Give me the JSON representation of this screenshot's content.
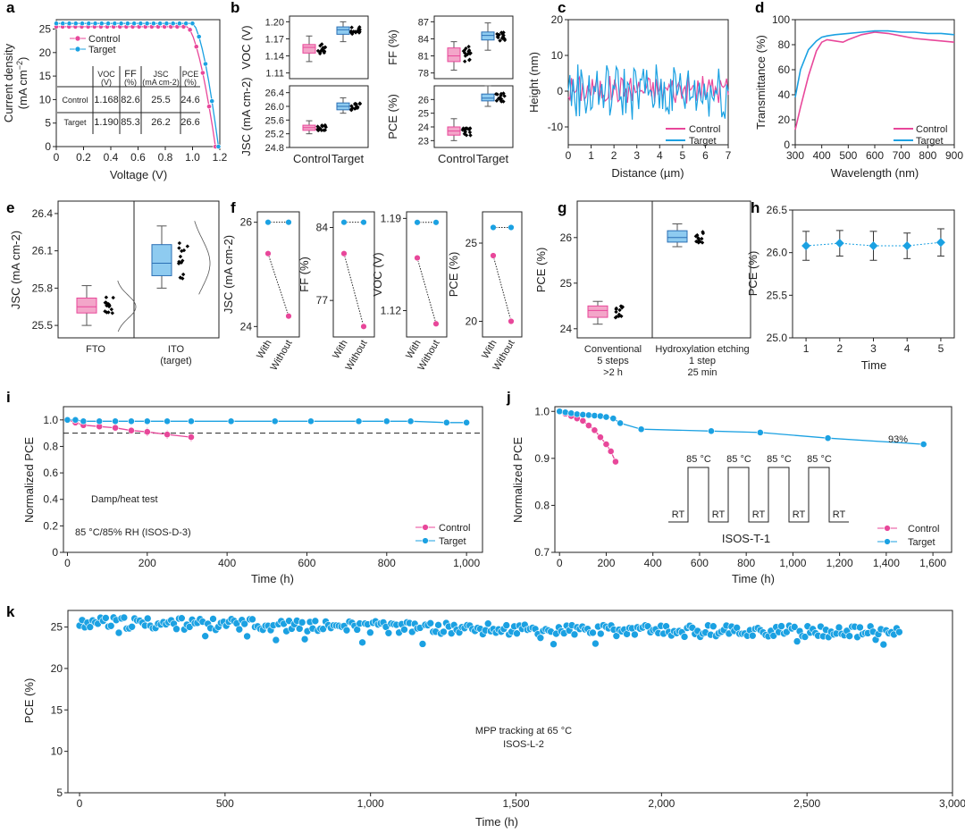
{
  "colors": {
    "control": "#e8479a",
    "target": "#1ba1e2",
    "controlFill": "#f3a6c9",
    "targetFill": "#8ecbf0"
  },
  "chart_data": [
    {
      "id": "a",
      "type": "line",
      "panel_label": "a",
      "xlabel": "Voltage (V)",
      "ylabel_line1": "Current density",
      "ylabel_line2": "(mA cm",
      "xlim": [
        0,
        1.2
      ],
      "ylim": [
        0,
        27
      ],
      "xticks": [
        "0",
        "0.2",
        "0.4",
        "0.6",
        "0.8",
        "1.0",
        "1.2"
      ],
      "yticks": [
        "0",
        "5",
        "10",
        "15",
        "20",
        "25"
      ],
      "legend": [
        "Control",
        "Target"
      ],
      "series": [
        {
          "name": "Control",
          "jsc": 25.5,
          "voc": 1.168,
          "knee": 0.96
        },
        {
          "name": "Target",
          "jsc": 26.2,
          "voc": 1.19,
          "knee": 1.0
        }
      ],
      "table": {
        "headers": [
          "",
          "VOC (V)",
          "FF (%)",
          "JSC (mA cm-2)",
          "PCE (%)"
        ],
        "rows": [
          [
            "Control",
            "1.168",
            "82.6",
            "25.5",
            "24.6"
          ],
          [
            "Target",
            "1.190",
            "85.3",
            "26.2",
            "26.6"
          ]
        ]
      }
    },
    {
      "id": "b",
      "type": "box",
      "panel_label": "b",
      "categories": [
        "Control",
        "Target"
      ],
      "subplots": [
        {
          "ylabel": "VOC (V)",
          "yticks": [
            "1.20",
            "1.17",
            "1.14",
            "1.11"
          ],
          "ylim": [
            1.1,
            1.21
          ],
          "control": [
            1.13,
            1.145,
            1.155,
            1.16,
            1.175
          ],
          "target": [
            1.165,
            1.178,
            1.186,
            1.191,
            1.2
          ]
        },
        {
          "ylabel": "FF (%)",
          "yticks": [
            "87",
            "84",
            "81",
            "78"
          ],
          "ylim": [
            77,
            88
          ],
          "control": [
            78.5,
            80,
            81,
            82.4,
            83.5
          ],
          "target": [
            82,
            83.8,
            84.6,
            85.2,
            86.8
          ]
        },
        {
          "ylabel": "JSC (mA cm-2)",
          "yticks": [
            "26.4",
            "26.0",
            "25.6",
            "25.2",
            "24.8"
          ],
          "ylim": [
            24.8,
            26.6
          ],
          "control": [
            25.2,
            25.3,
            25.38,
            25.45,
            25.58
          ],
          "target": [
            25.8,
            25.9,
            26.0,
            26.1,
            26.25
          ]
        },
        {
          "ylabel": "PCE (%)",
          "yticks": [
            "26",
            "25",
            "24",
            "23"
          ],
          "ylim": [
            22.5,
            27
          ],
          "control": [
            23,
            23.4,
            23.7,
            24.0,
            24.6
          ],
          "target": [
            25.5,
            25.9,
            26.1,
            26.4,
            27
          ]
        }
      ]
    },
    {
      "id": "c",
      "type": "line",
      "panel_label": "c",
      "xlabel": "Distance (µm)",
      "ylabel": "Height (nm)",
      "xlim": [
        0,
        7
      ],
      "ylim": [
        -15,
        20
      ],
      "xticks": [
        "0",
        "1",
        "2",
        "3",
        "4",
        "5",
        "6",
        "7"
      ],
      "yticks": [
        "20",
        "10",
        "0",
        "-10"
      ],
      "legend": [
        "Control",
        "Target"
      ],
      "series": [
        {
          "name": "Control",
          "amplitude": 4
        },
        {
          "name": "Target",
          "amplitude": 8
        }
      ]
    },
    {
      "id": "d",
      "type": "line",
      "panel_label": "d",
      "xlabel": "Wavelength (nm)",
      "ylabel": "Transmittance (%)",
      "xlim": [
        300,
        900
      ],
      "ylim": [
        0,
        100
      ],
      "xticks": [
        "300",
        "400",
        "500",
        "600",
        "700",
        "800",
        "900"
      ],
      "yticks": [
        "0",
        "20",
        "40",
        "60",
        "80",
        "100"
      ],
      "legend": [
        "Control",
        "Target"
      ],
      "series": [
        {
          "name": "Control",
          "x": [
            300,
            320,
            350,
            380,
            400,
            420,
            450,
            480,
            500,
            550,
            600,
            650,
            700,
            750,
            800,
            850,
            900
          ],
          "y": [
            12,
            30,
            55,
            75,
            82,
            84,
            83,
            82,
            84,
            88,
            90,
            89,
            87,
            85,
            84,
            83,
            82
          ]
        },
        {
          "name": "Target",
          "x": [
            300,
            320,
            350,
            380,
            400,
            420,
            450,
            500,
            550,
            600,
            650,
            700,
            750,
            800,
            850,
            900
          ],
          "y": [
            38,
            60,
            76,
            83,
            86,
            87,
            88,
            89,
            90,
            91,
            91,
            90,
            90,
            89,
            89,
            88
          ]
        }
      ]
    },
    {
      "id": "e",
      "type": "box",
      "panel_label": "e",
      "ylabel": "JSC (mA cm-2)",
      "ylim": [
        25.4,
        26.5
      ],
      "yticks": [
        "26.4",
        "26.1",
        "25.8",
        "25.5"
      ],
      "categories": [
        "FTO",
        "ITO (target)"
      ],
      "boxes": [
        [
          25.5,
          25.6,
          25.65,
          25.72,
          25.82
        ],
        [
          25.8,
          25.9,
          26.0,
          26.15,
          26.3
        ]
      ]
    },
    {
      "id": "f",
      "type": "paired",
      "panel_label": "f",
      "categories": [
        "With",
        "Without"
      ],
      "subplots": [
        {
          "ylabel": "JSC (mA cm-2)",
          "yticks": [
            "26",
            "24"
          ],
          "ylim": [
            23.8,
            26.2
          ],
          "target": [
            26,
            26
          ],
          "control": [
            25.4,
            24.2
          ]
        },
        {
          "ylabel": "FF (%)",
          "yticks": [
            "84",
            "77"
          ],
          "ylim": [
            73.5,
            85.5
          ],
          "target": [
            84.5,
            84.5
          ],
          "control": [
            81.5,
            74.5
          ]
        },
        {
          "ylabel": "VOC (V)",
          "yticks": [
            "1.19",
            "1.12"
          ],
          "ylim": [
            1.1,
            1.195
          ],
          "target": [
            1.187,
            1.187
          ],
          "control": [
            1.16,
            1.11
          ]
        },
        {
          "ylabel": "PCE (%)",
          "yticks": [
            "25",
            "20"
          ],
          "ylim": [
            19,
            27
          ],
          "target": [
            26,
            26
          ],
          "control": [
            24.2,
            20
          ]
        }
      ]
    },
    {
      "id": "g",
      "type": "box",
      "panel_label": "g",
      "ylabel": "PCE (%)",
      "ylim": [
        23.8,
        26.8
      ],
      "yticks": [
        "26",
        "25",
        "24"
      ],
      "categories": [
        "Conventional",
        "Hydroxylation etching"
      ],
      "category_details": [
        [
          "5 steps",
          ">2 h"
        ],
        [
          "1 step",
          "25 min"
        ]
      ],
      "boxes": [
        [
          24.1,
          24.25,
          24.4,
          24.5,
          24.6
        ],
        [
          25.8,
          25.9,
          26.0,
          26.15,
          26.3
        ]
      ]
    },
    {
      "id": "h",
      "type": "scatter",
      "panel_label": "h",
      "xlabel": "Time",
      "ylabel": "PCE (%)",
      "xlim": [
        0.6,
        5.4
      ],
      "ylim": [
        25.0,
        26.5
      ],
      "xticks": [
        "1",
        "2",
        "3",
        "4",
        "5"
      ],
      "yticks": [
        "26.5",
        "26.0",
        "25.5",
        "25.0"
      ],
      "x": [
        1,
        2,
        3,
        4,
        5
      ],
      "y": [
        26.08,
        26.11,
        26.08,
        26.08,
        26.12
      ],
      "err": [
        0.17,
        0.15,
        0.17,
        0.15,
        0.16
      ]
    },
    {
      "id": "i",
      "type": "line",
      "panel_label": "i",
      "xlabel": "Time (h)",
      "ylabel": "Normalized PCE",
      "xlim": [
        -10,
        1040
      ],
      "ylim": [
        0,
        1.1
      ],
      "xticks": [
        "0",
        "200",
        "400",
        "600",
        "800",
        "1,000"
      ],
      "yticks": [
        "0",
        "0.2",
        "0.4",
        "0.6",
        "0.8",
        "1.0"
      ],
      "reference_line": 0.9,
      "annotation_lines": [
        "Damp/heat test",
        "85 °C/85% RH (ISOS-D-3)"
      ],
      "legend": [
        "Control",
        "Target"
      ],
      "series": [
        {
          "name": "Control",
          "x": [
            0,
            20,
            40,
            80,
            120,
            160,
            200,
            250,
            310
          ],
          "y": [
            1.0,
            0.98,
            0.96,
            0.95,
            0.94,
            0.92,
            0.91,
            0.89,
            0.87
          ],
          "err": [
            0,
            0.01,
            0.01,
            0.02,
            0.02,
            0.02,
            0.03,
            0.03,
            0.03
          ]
        },
        {
          "name": "Target",
          "x": [
            0,
            20,
            40,
            80,
            120,
            160,
            200,
            250,
            310,
            410,
            520,
            610,
            730,
            800,
            860,
            950,
            1000
          ],
          "y": [
            1.0,
            1.0,
            0.99,
            0.99,
            0.99,
            0.99,
            0.99,
            0.99,
            0.99,
            0.99,
            0.99,
            0.99,
            0.99,
            0.99,
            0.99,
            0.98,
            0.98
          ]
        }
      ]
    },
    {
      "id": "j",
      "type": "line",
      "panel_label": "j",
      "xlabel": "Time (h)",
      "ylabel": "Normalized PCE",
      "xlim": [
        -20,
        1680
      ],
      "ylim": [
        0.7,
        1.01
      ],
      "xticks": [
        "0",
        "200",
        "400",
        "600",
        "800",
        "1,000",
        "1,200",
        "1,400",
        "1,600"
      ],
      "yticks": [
        "0.7",
        "0.8",
        "0.9",
        "1.0"
      ],
      "end_label": "93%",
      "cycle_labels": {
        "hot": "85 °C",
        "cold": "RT",
        "cycles": 4
      },
      "protocol": "ISOS-T-1",
      "legend": [
        "Control",
        "Target"
      ],
      "series": [
        {
          "name": "Control",
          "x": [
            0,
            25,
            50,
            75,
            100,
            125,
            150,
            175,
            200,
            220,
            240
          ],
          "y": [
            1.0,
            0.995,
            0.99,
            0.985,
            0.98,
            0.97,
            0.96,
            0.945,
            0.93,
            0.915,
            0.893
          ]
        },
        {
          "name": "Target",
          "x": [
            0,
            25,
            50,
            75,
            100,
            125,
            150,
            175,
            200,
            230,
            260,
            350,
            650,
            860,
            1150,
            1560
          ],
          "y": [
            1.0,
            0.998,
            0.996,
            0.994,
            0.993,
            0.992,
            0.991,
            0.99,
            0.988,
            0.985,
            0.975,
            0.962,
            0.958,
            0.955,
            0.943,
            0.93
          ]
        }
      ]
    },
    {
      "id": "k",
      "type": "scatter",
      "panel_label": "k",
      "xlabel": "Time (h)",
      "ylabel": "PCE (%)",
      "xlim": [
        -40,
        3000
      ],
      "ylim": [
        5,
        27
      ],
      "xticks": [
        "0",
        "500",
        "1,000",
        "1,500",
        "2,000",
        "2,500",
        "3,000"
      ],
      "yticks": [
        "5",
        "10",
        "15",
        "20",
        "25"
      ],
      "annotation_lines": [
        "MPP tracking at 65 °C",
        "ISOS-L-2"
      ],
      "trend": {
        "x": [
          0,
          500,
          1000,
          1500,
          2000,
          2500,
          2820
        ],
        "y": [
          25.6,
          25.3,
          25.0,
          24.7,
          24.5,
          24.5,
          24.4
        ]
      }
    }
  ]
}
